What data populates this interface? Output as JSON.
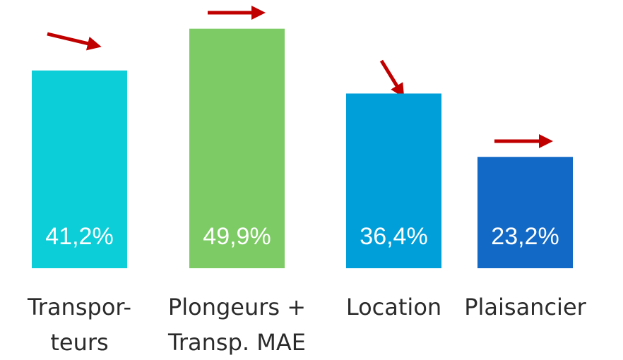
{
  "chart_data": {
    "type": "bar",
    "categories": [
      "Transpor-\nteurs",
      "Plongeurs +\nTransp. MAE",
      "Location",
      "Plaisancier"
    ],
    "values": [
      41.2,
      49.9,
      36.4,
      23.2
    ],
    "value_labels": [
      "41,2%",
      "49,9%",
      "36,4%",
      "23,2%"
    ],
    "colors": [
      "#0cced8",
      "#7dcb64",
      "#009fda",
      "#1269c6"
    ]
  }
}
